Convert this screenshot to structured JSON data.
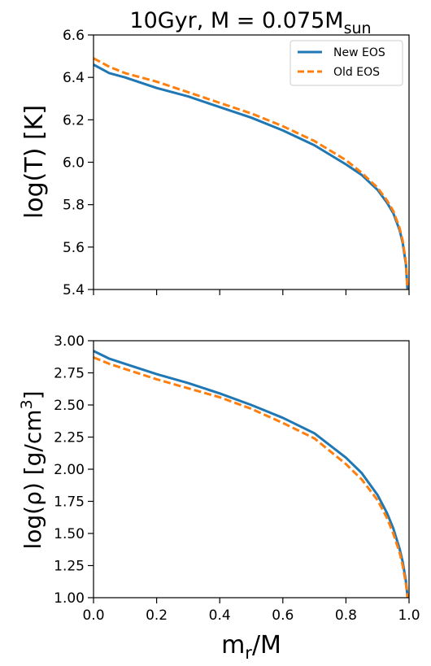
{
  "figure": {
    "title_text": "10Gyr, M = 0.075M",
    "title_subscript": "sun"
  },
  "colors": {
    "new_eos": "#1f77b4",
    "old_eos": "#ff7f0e"
  },
  "legend": {
    "placement": "top-right",
    "entries": [
      "New EOS",
      "Old EOS"
    ]
  },
  "chart_data": [
    {
      "type": "line",
      "panel": "top",
      "ylabel": "log(T) [K]",
      "xlabel": "",
      "xlim": [
        0.0,
        1.0
      ],
      "ylim": [
        5.4,
        6.6
      ],
      "yticks": [
        "5.4",
        "5.6",
        "5.8",
        "6.0",
        "6.2",
        "6.4",
        "6.6"
      ],
      "xticks_labeled": false,
      "series": [
        {
          "name": "New EOS",
          "style": "solid",
          "color": "#1f77b4",
          "x": [
            0.0,
            0.05,
            0.1,
            0.2,
            0.3,
            0.4,
            0.5,
            0.6,
            0.7,
            0.8,
            0.85,
            0.9,
            0.93,
            0.95,
            0.97,
            0.98,
            0.99,
            0.995
          ],
          "y": [
            6.46,
            6.42,
            6.4,
            6.35,
            6.31,
            6.26,
            6.21,
            6.15,
            6.08,
            5.99,
            5.94,
            5.87,
            5.81,
            5.76,
            5.68,
            5.62,
            5.52,
            5.4
          ]
        },
        {
          "name": "Old EOS",
          "style": "dashed",
          "color": "#ff7f0e",
          "x": [
            0.0,
            0.05,
            0.1,
            0.2,
            0.3,
            0.4,
            0.5,
            0.6,
            0.7,
            0.8,
            0.85,
            0.9,
            0.93,
            0.95,
            0.97,
            0.98,
            0.99,
            0.995
          ],
          "y": [
            6.49,
            6.45,
            6.42,
            6.38,
            6.33,
            6.28,
            6.23,
            6.17,
            6.1,
            6.01,
            5.95,
            5.88,
            5.82,
            5.77,
            5.69,
            5.63,
            5.53,
            5.4
          ]
        }
      ]
    },
    {
      "type": "line",
      "panel": "bottom",
      "ylabel": "log(ρ) [g/cm3]",
      "ylabel_main": "log(ρ) [g/cm",
      "ylabel_sup": "3",
      "ylabel_end": "]",
      "xlabel": "mr/M",
      "xlabel_main": "m",
      "xlabel_sub": "r",
      "xlabel_end": "/M",
      "xlim": [
        0.0,
        1.0
      ],
      "ylim": [
        1.0,
        3.0
      ],
      "yticks": [
        "1.00",
        "1.25",
        "1.50",
        "1.75",
        "2.00",
        "2.25",
        "2.50",
        "2.75",
        "3.00"
      ],
      "xticks": [
        "0.0",
        "0.2",
        "0.4",
        "0.6",
        "0.8",
        "1.0"
      ],
      "series": [
        {
          "name": "New EOS",
          "style": "solid",
          "color": "#1f77b4",
          "x": [
            0.0,
            0.05,
            0.1,
            0.2,
            0.3,
            0.4,
            0.5,
            0.6,
            0.7,
            0.8,
            0.85,
            0.9,
            0.93,
            0.95,
            0.97,
            0.98,
            0.99,
            0.995
          ],
          "y": [
            2.92,
            2.86,
            2.82,
            2.74,
            2.67,
            2.59,
            2.5,
            2.4,
            2.28,
            2.09,
            1.97,
            1.8,
            1.66,
            1.54,
            1.38,
            1.28,
            1.13,
            1.01
          ]
        },
        {
          "name": "Old EOS",
          "style": "dashed",
          "color": "#ff7f0e",
          "x": [
            0.0,
            0.05,
            0.1,
            0.2,
            0.3,
            0.4,
            0.5,
            0.6,
            0.7,
            0.8,
            0.85,
            0.9,
            0.93,
            0.95,
            0.97,
            0.98,
            0.99,
            0.995
          ],
          "y": [
            2.87,
            2.82,
            2.78,
            2.7,
            2.63,
            2.56,
            2.47,
            2.36,
            2.24,
            2.04,
            1.92,
            1.76,
            1.62,
            1.5,
            1.35,
            1.25,
            1.11,
            1.0
          ]
        }
      ]
    }
  ]
}
